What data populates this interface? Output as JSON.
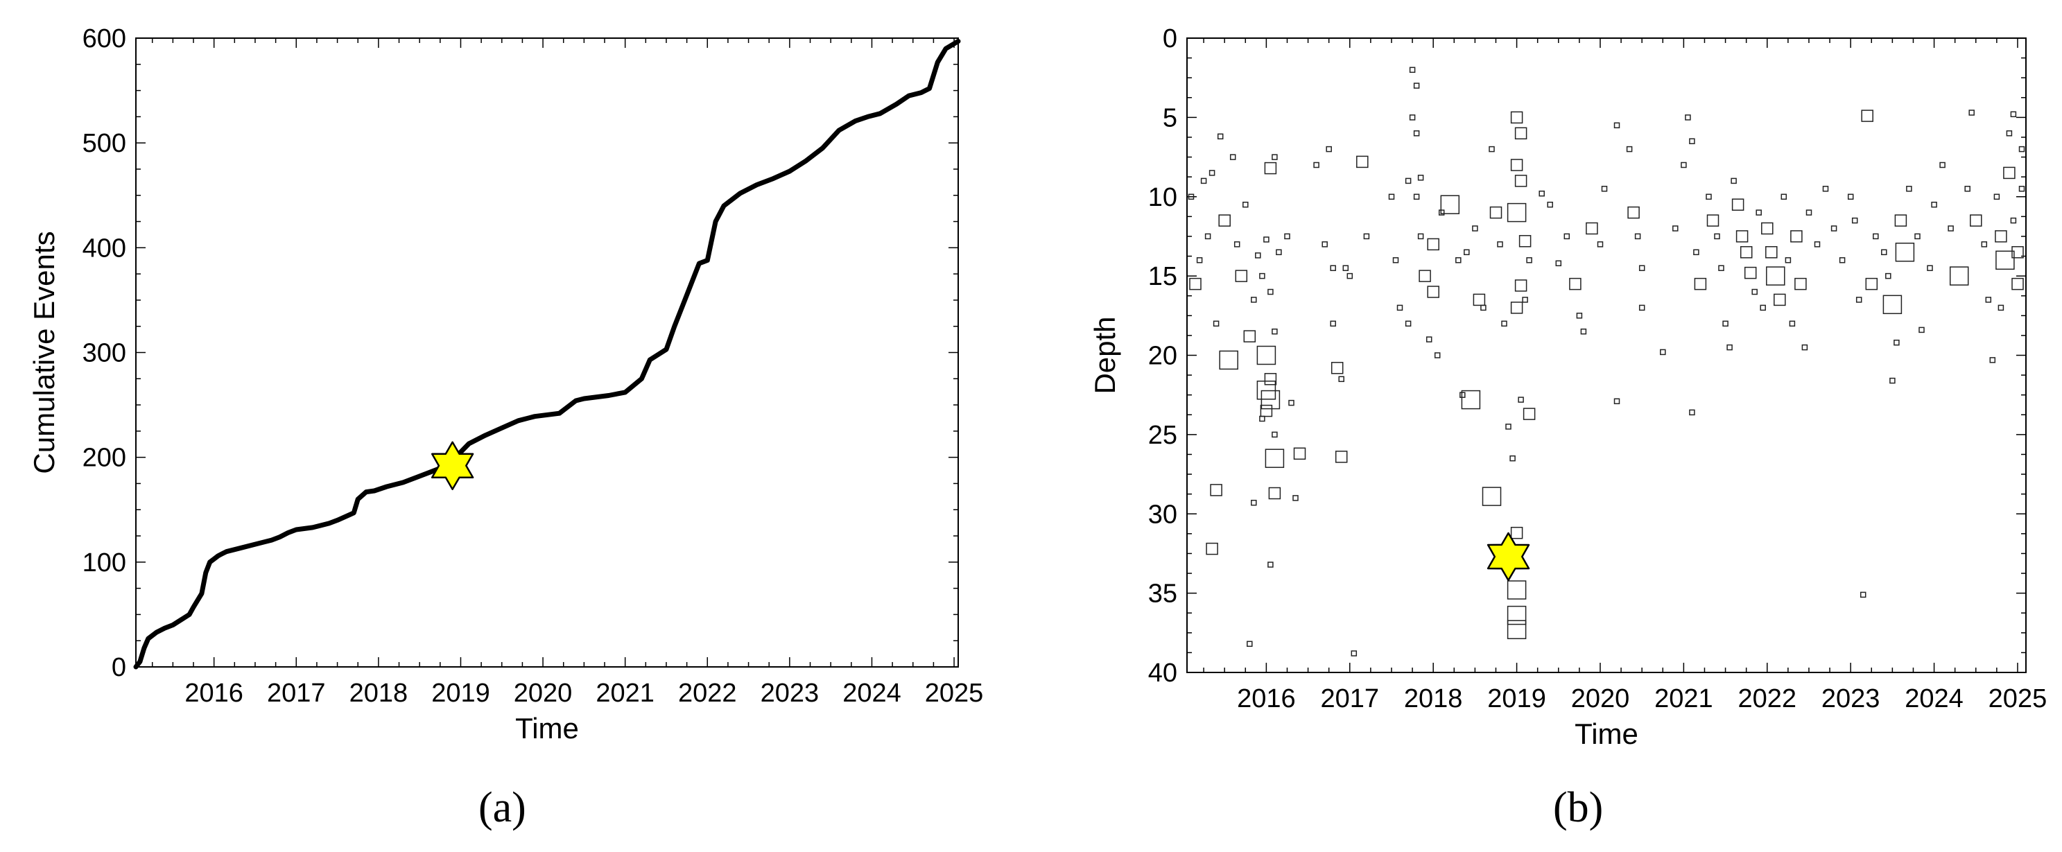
{
  "chart_data": [
    {
      "panel": "(a)",
      "type": "line",
      "title": "",
      "xlabel": "Time",
      "ylabel": "Cumulative Events",
      "xlim": [
        2015.05,
        2025.05
      ],
      "ylim": [
        0,
        600
      ],
      "xticks": [
        "2016",
        "2017",
        "2018",
        "2019",
        "2020",
        "2021",
        "2022",
        "2023",
        "2024",
        "2025"
      ],
      "yticks": [
        "0",
        "100",
        "200",
        "300",
        "400",
        "500",
        "600"
      ],
      "grid": false,
      "series": [
        {
          "color": "#000000",
          "x": [
            2015.05,
            2015.1,
            2015.15,
            2015.2,
            2015.3,
            2015.4,
            2015.5,
            2015.6,
            2015.7,
            2015.75,
            2015.85,
            2015.9,
            2015.95,
            2016.0,
            2016.05,
            2016.1,
            2016.15,
            2016.3,
            2016.5,
            2016.7,
            2016.8,
            2016.9,
            2017.0,
            2017.2,
            2017.4,
            2017.5,
            2017.7,
            2017.75,
            2017.85,
            2017.95,
            2018.1,
            2018.3,
            2018.5,
            2018.7,
            2018.9,
            2019.0,
            2019.1,
            2019.3,
            2019.5,
            2019.7,
            2019.9,
            2020.0,
            2020.2,
            2020.3,
            2020.4,
            2020.5,
            2020.8,
            2021.0,
            2021.2,
            2021.3,
            2021.5,
            2021.6,
            2021.7,
            2021.8,
            2021.9,
            2022.0,
            2022.1,
            2022.2,
            2022.4,
            2022.6,
            2022.8,
            2023.0,
            2023.2,
            2023.4,
            2023.6,
            2023.8,
            2023.95,
            2024.1,
            2024.3,
            2024.45,
            2024.6,
            2024.7,
            2024.8,
            2024.9,
            2025.05
          ],
          "y": [
            0,
            5,
            18,
            27,
            33,
            37,
            40,
            45,
            50,
            57,
            70,
            90,
            100,
            103,
            106,
            108,
            110,
            113,
            117,
            121,
            124,
            128,
            131,
            133,
            137,
            140,
            147,
            160,
            167,
            168,
            172,
            176,
            182,
            188,
            194,
            205,
            213,
            221,
            228,
            235,
            239,
            240,
            242,
            248,
            254,
            256,
            259,
            262,
            275,
            293,
            303,
            325,
            345,
            365,
            385,
            388,
            425,
            440,
            452,
            460,
            466,
            473,
            483,
            495,
            512,
            521,
            525,
            528,
            537,
            545,
            548,
            552,
            577,
            590,
            597
          ]
        }
      ],
      "markers": [
        {
          "shape": "star",
          "color": "#FFFF00",
          "x": 2018.9,
          "y": 192
        }
      ]
    },
    {
      "panel": "(b)",
      "type": "scatter",
      "title": "",
      "xlabel": "Time",
      "ylabel": "Depth",
      "xlim": [
        2015.05,
        2025.1
      ],
      "ylim": [
        0,
        40
      ],
      "y_inverted": true,
      "xticks": [
        "2016",
        "2017",
        "2018",
        "2019",
        "2020",
        "2021",
        "2022",
        "2023",
        "2024",
        "2025"
      ],
      "yticks": [
        "0",
        "5",
        "10",
        "15",
        "20",
        "25",
        "30",
        "35",
        "40"
      ],
      "grid": false,
      "marker": "open-square",
      "point_size_note": "square size scales with event magnitude",
      "points": [
        [
          2015.1,
          10,
          1
        ],
        [
          2015.15,
          15.5,
          2
        ],
        [
          2015.2,
          14,
          1
        ],
        [
          2015.25,
          9,
          1
        ],
        [
          2015.3,
          12.5,
          1
        ],
        [
          2015.35,
          8.5,
          1
        ],
        [
          2015.4,
          18,
          1
        ],
        [
          2015.45,
          6.2,
          1
        ],
        [
          2015.5,
          11.5,
          2
        ],
        [
          2015.55,
          20.3,
          3
        ],
        [
          2015.6,
          7.5,
          1
        ],
        [
          2015.65,
          13,
          1
        ],
        [
          2015.7,
          15,
          2
        ],
        [
          2015.8,
          18.8,
          2
        ],
        [
          2015.9,
          13.7,
          1
        ],
        [
          2015.95,
          24,
          1
        ],
        [
          2015.4,
          28.5,
          2
        ],
        [
          2015.35,
          32.2,
          2
        ],
        [
          2015.75,
          10.5,
          1
        ],
        [
          2015.85,
          16.5,
          1
        ],
        [
          2016.0,
          12.7,
          1
        ],
        [
          2016.05,
          8.2,
          2
        ],
        [
          2016.1,
          7.5,
          1
        ],
        [
          2016.15,
          13.5,
          1
        ],
        [
          2015.95,
          15,
          1
        ],
        [
          2016.05,
          16,
          1
        ],
        [
          2016.0,
          20,
          3
        ],
        [
          2016.05,
          21.5,
          2
        ],
        [
          2016.0,
          22.2,
          3
        ],
        [
          2016.05,
          22.8,
          3
        ],
        [
          2016.0,
          23.5,
          2
        ],
        [
          2016.1,
          18.5,
          1
        ],
        [
          2016.1,
          25,
          1
        ],
        [
          2016.1,
          26.5,
          3
        ],
        [
          2016.1,
          28.7,
          2
        ],
        [
          2016.05,
          33.2,
          1
        ],
        [
          2015.85,
          29.3,
          1
        ],
        [
          2015.8,
          38.2,
          1
        ],
        [
          2016.25,
          12.5,
          1
        ],
        [
          2016.3,
          23,
          1
        ],
        [
          2016.35,
          29,
          1
        ],
        [
          2016.4,
          26.2,
          2
        ],
        [
          2016.6,
          8,
          1
        ],
        [
          2016.7,
          13,
          1
        ],
        [
          2016.75,
          7,
          1
        ],
        [
          2016.8,
          14.5,
          1
        ],
        [
          2016.8,
          18,
          1
        ],
        [
          2016.85,
          20.8,
          2
        ],
        [
          2016.9,
          26.4,
          2
        ],
        [
          2016.9,
          21.5,
          1
        ],
        [
          2016.95,
          14.5,
          1
        ],
        [
          2017.0,
          15,
          1
        ],
        [
          2017.05,
          38.8,
          1
        ],
        [
          2017.15,
          7.8,
          2
        ],
        [
          2017.2,
          12.5,
          1
        ],
        [
          2017.5,
          10,
          1
        ],
        [
          2017.55,
          14,
          1
        ],
        [
          2017.6,
          17,
          1
        ],
        [
          2017.7,
          18,
          1
        ],
        [
          2017.8,
          10,
          1
        ],
        [
          2017.85,
          12.5,
          1
        ],
        [
          2017.9,
          15,
          2
        ],
        [
          2017.95,
          19,
          1
        ],
        [
          2018.0,
          13,
          2
        ],
        [
          2018.0,
          16,
          2
        ],
        [
          2018.05,
          20,
          1
        ],
        [
          2017.75,
          2,
          1
        ],
        [
          2017.8,
          3,
          1
        ],
        [
          2017.75,
          5,
          1
        ],
        [
          2017.8,
          6,
          1
        ],
        [
          2017.85,
          8.8,
          1
        ],
        [
          2017.7,
          9,
          1
        ],
        [
          2018.1,
          11,
          1
        ],
        [
          2018.2,
          10.5,
          3
        ],
        [
          2018.3,
          14,
          1
        ],
        [
          2018.4,
          13.5,
          1
        ],
        [
          2018.5,
          12,
          1
        ],
        [
          2018.55,
          16.5,
          2
        ],
        [
          2018.35,
          22.5,
          1
        ],
        [
          2018.45,
          22.8,
          3
        ],
        [
          2018.6,
          17,
          1
        ],
        [
          2018.7,
          7,
          1
        ],
        [
          2018.75,
          11,
          2
        ],
        [
          2018.8,
          13,
          1
        ],
        [
          2018.85,
          18,
          1
        ],
        [
          2018.9,
          24.5,
          1
        ],
        [
          2018.7,
          28.9,
          3
        ],
        [
          2019.0,
          5,
          2
        ],
        [
          2019.05,
          6,
          2
        ],
        [
          2019.0,
          8,
          2
        ],
        [
          2019.05,
          9,
          2
        ],
        [
          2019.0,
          11,
          3
        ],
        [
          2019.1,
          12.8,
          2
        ],
        [
          2019.15,
          14,
          1
        ],
        [
          2019.05,
          15.6,
          2
        ],
        [
          2019.0,
          17,
          2
        ],
        [
          2019.1,
          16.5,
          1
        ],
        [
          2019.05,
          22.8,
          1
        ],
        [
          2019.15,
          23.7,
          2
        ],
        [
          2018.95,
          26.5,
          1
        ],
        [
          2019.0,
          31.2,
          2
        ],
        [
          2019.0,
          34.8,
          3
        ],
        [
          2019.0,
          36.4,
          3
        ],
        [
          2019.0,
          37.3,
          3
        ],
        [
          2019.3,
          9.8,
          1
        ],
        [
          2019.4,
          10.5,
          1
        ],
        [
          2019.5,
          14.2,
          1
        ],
        [
          2019.6,
          12.5,
          1
        ],
        [
          2019.7,
          15.5,
          2
        ],
        [
          2019.75,
          17.5,
          1
        ],
        [
          2019.8,
          18.5,
          1
        ],
        [
          2019.9,
          12,
          2
        ],
        [
          2020.0,
          13,
          1
        ],
        [
          2020.05,
          9.5,
          1
        ],
        [
          2020.2,
          5.5,
          1
        ],
        [
          2020.2,
          22.9,
          1
        ],
        [
          2020.35,
          7,
          1
        ],
        [
          2020.4,
          11,
          2
        ],
        [
          2020.45,
          12.5,
          1
        ],
        [
          2020.5,
          14.5,
          1
        ],
        [
          2020.5,
          17,
          1
        ],
        [
          2020.75,
          19.8,
          1
        ],
        [
          2020.9,
          12,
          1
        ],
        [
          2021.0,
          8,
          1
        ],
        [
          2021.05,
          5,
          1
        ],
        [
          2021.1,
          6.5,
          1
        ],
        [
          2021.15,
          13.5,
          1
        ],
        [
          2021.2,
          15.5,
          2
        ],
        [
          2021.1,
          23.6,
          1
        ],
        [
          2021.3,
          10,
          1
        ],
        [
          2021.35,
          11.5,
          2
        ],
        [
          2021.4,
          12.5,
          1
        ],
        [
          2021.45,
          14.5,
          1
        ],
        [
          2021.5,
          18,
          1
        ],
        [
          2021.55,
          19.5,
          1
        ],
        [
          2021.6,
          9,
          1
        ],
        [
          2021.65,
          10.5,
          2
        ],
        [
          2021.7,
          12.5,
          2
        ],
        [
          2021.75,
          13.5,
          2
        ],
        [
          2021.8,
          14.8,
          2
        ],
        [
          2021.85,
          16,
          1
        ],
        [
          2021.9,
          11,
          1
        ],
        [
          2021.95,
          17,
          1
        ],
        [
          2022.0,
          12,
          2
        ],
        [
          2022.05,
          13.5,
          2
        ],
        [
          2022.1,
          15,
          3
        ],
        [
          2022.15,
          16.5,
          2
        ],
        [
          2022.2,
          10,
          1
        ],
        [
          2022.25,
          14,
          1
        ],
        [
          2022.3,
          18,
          1
        ],
        [
          2022.35,
          12.5,
          2
        ],
        [
          2022.4,
          15.5,
          2
        ],
        [
          2022.45,
          19.5,
          1
        ],
        [
          2022.5,
          11,
          1
        ],
        [
          2022.6,
          13,
          1
        ],
        [
          2022.7,
          9.5,
          1
        ],
        [
          2022.8,
          12,
          1
        ],
        [
          2022.9,
          14,
          1
        ],
        [
          2023.0,
          10,
          1
        ],
        [
          2023.05,
          11.5,
          1
        ],
        [
          2023.1,
          16.5,
          1
        ],
        [
          2023.15,
          35.1,
          1
        ],
        [
          2023.2,
          4.9,
          2
        ],
        [
          2023.25,
          15.5,
          2
        ],
        [
          2023.3,
          12.5,
          1
        ],
        [
          2023.4,
          13.5,
          1
        ],
        [
          2023.45,
          15,
          1
        ],
        [
          2023.5,
          16.8,
          3
        ],
        [
          2023.55,
          19.2,
          1
        ],
        [
          2023.5,
          21.6,
          1
        ],
        [
          2023.6,
          11.5,
          2
        ],
        [
          2023.65,
          13.5,
          3
        ],
        [
          2023.7,
          9.5,
          1
        ],
        [
          2023.8,
          12.5,
          1
        ],
        [
          2023.85,
          18.4,
          1
        ],
        [
          2023.95,
          14.5,
          1
        ],
        [
          2024.0,
          10.5,
          1
        ],
        [
          2024.1,
          8,
          1
        ],
        [
          2024.2,
          12,
          1
        ],
        [
          2024.3,
          15,
          3
        ],
        [
          2024.4,
          9.5,
          1
        ],
        [
          2024.45,
          4.7,
          1
        ],
        [
          2024.5,
          11.5,
          2
        ],
        [
          2024.6,
          13,
          1
        ],
        [
          2024.65,
          16.5,
          1
        ],
        [
          2024.7,
          20.3,
          1
        ],
        [
          2024.75,
          10,
          1
        ],
        [
          2024.8,
          12.5,
          2
        ],
        [
          2024.85,
          14,
          3
        ],
        [
          2024.9,
          8.5,
          2
        ],
        [
          2024.95,
          11.5,
          1
        ],
        [
          2025.0,
          13.5,
          2
        ],
        [
          2025.05,
          9.5,
          1
        ],
        [
          2024.95,
          4.8,
          1
        ],
        [
          2024.8,
          17,
          1
        ],
        [
          2025.0,
          15.5,
          2
        ],
        [
          2025.05,
          7,
          1
        ],
        [
          2024.9,
          6,
          1
        ]
      ],
      "markers": [
        {
          "shape": "star",
          "color": "#FFFF00",
          "x": 2018.9,
          "y": 32.7
        }
      ]
    }
  ],
  "panel_labels": {
    "a": "(a)",
    "b": "(b)"
  }
}
